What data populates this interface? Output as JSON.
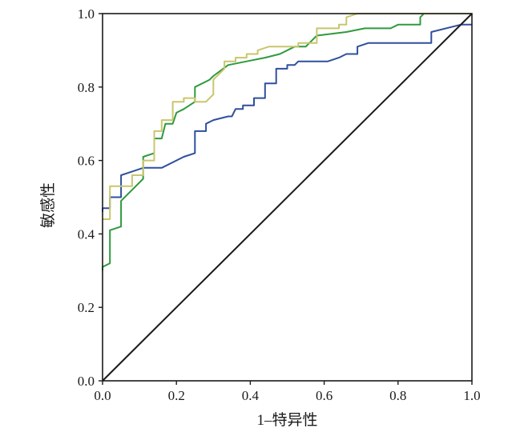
{
  "chart_data": {
    "type": "line",
    "title": "",
    "xlabel": "1–特异性",
    "ylabel": "敏感性",
    "xlim": [
      0.0,
      1.0
    ],
    "ylim": [
      0.0,
      1.0
    ],
    "xticks": [
      "0.0",
      "0.2",
      "0.4",
      "0.6",
      "0.8",
      "1.0"
    ],
    "yticks": [
      "0.0",
      "0.2",
      "0.4",
      "0.6",
      "0.8",
      "1.0"
    ],
    "grid": false,
    "legend": "none",
    "series": [
      {
        "name": "blue-roc-curve",
        "color": "#2f4f9e",
        "points": [
          [
            0,
            0.46
          ],
          [
            0,
            0.47
          ],
          [
            0.02,
            0.47
          ],
          [
            0.02,
            0.5
          ],
          [
            0.05,
            0.5
          ],
          [
            0.05,
            0.56
          ],
          [
            0.08,
            0.57
          ],
          [
            0.11,
            0.58
          ],
          [
            0.16,
            0.58
          ],
          [
            0.22,
            0.61
          ],
          [
            0.25,
            0.62
          ],
          [
            0.25,
            0.68
          ],
          [
            0.28,
            0.68
          ],
          [
            0.28,
            0.7
          ],
          [
            0.3,
            0.71
          ],
          [
            0.34,
            0.72
          ],
          [
            0.35,
            0.72
          ],
          [
            0.36,
            0.74
          ],
          [
            0.38,
            0.74
          ],
          [
            0.38,
            0.75
          ],
          [
            0.41,
            0.75
          ],
          [
            0.41,
            0.77
          ],
          [
            0.44,
            0.77
          ],
          [
            0.44,
            0.81
          ],
          [
            0.47,
            0.81
          ],
          [
            0.47,
            0.85
          ],
          [
            0.5,
            0.85
          ],
          [
            0.5,
            0.86
          ],
          [
            0.52,
            0.86
          ],
          [
            0.53,
            0.87
          ],
          [
            0.58,
            0.87
          ],
          [
            0.61,
            0.87
          ],
          [
            0.64,
            0.88
          ],
          [
            0.66,
            0.89
          ],
          [
            0.69,
            0.89
          ],
          [
            0.69,
            0.91
          ],
          [
            0.72,
            0.92
          ],
          [
            0.89,
            0.92
          ],
          [
            0.89,
            0.95
          ],
          [
            0.97,
            0.97
          ],
          [
            1.0,
            0.97
          ]
        ]
      },
      {
        "name": "green-roc-curve",
        "color": "#2e9a3e",
        "points": [
          [
            0,
            0.3
          ],
          [
            0,
            0.31
          ],
          [
            0.02,
            0.32
          ],
          [
            0.02,
            0.41
          ],
          [
            0.05,
            0.42
          ],
          [
            0.05,
            0.49
          ],
          [
            0.09,
            0.53
          ],
          [
            0.11,
            0.55
          ],
          [
            0.11,
            0.61
          ],
          [
            0.14,
            0.62
          ],
          [
            0.14,
            0.66
          ],
          [
            0.16,
            0.66
          ],
          [
            0.17,
            0.7
          ],
          [
            0.19,
            0.7
          ],
          [
            0.2,
            0.73
          ],
          [
            0.22,
            0.74
          ],
          [
            0.25,
            0.76
          ],
          [
            0.25,
            0.8
          ],
          [
            0.29,
            0.82
          ],
          [
            0.3,
            0.83
          ],
          [
            0.34,
            0.86
          ],
          [
            0.39,
            0.87
          ],
          [
            0.44,
            0.88
          ],
          [
            0.48,
            0.89
          ],
          [
            0.52,
            0.91
          ],
          [
            0.55,
            0.91
          ],
          [
            0.56,
            0.92
          ],
          [
            0.58,
            0.94
          ],
          [
            0.66,
            0.95
          ],
          [
            0.71,
            0.96
          ],
          [
            0.78,
            0.96
          ],
          [
            0.8,
            0.97
          ],
          [
            0.86,
            0.97
          ],
          [
            0.86,
            0.99
          ],
          [
            0.87,
            1.0
          ],
          [
            1.0,
            1.0
          ]
        ]
      },
      {
        "name": "yellow-roc-curve",
        "color": "#c8c66c",
        "points": [
          [
            0,
            0.44
          ],
          [
            0.02,
            0.44
          ],
          [
            0.02,
            0.53
          ],
          [
            0.06,
            0.53
          ],
          [
            0.06,
            0.53
          ],
          [
            0.08,
            0.53
          ],
          [
            0.08,
            0.56
          ],
          [
            0.11,
            0.56
          ],
          [
            0.11,
            0.6
          ],
          [
            0.14,
            0.6
          ],
          [
            0.14,
            0.68
          ],
          [
            0.16,
            0.68
          ],
          [
            0.16,
            0.71
          ],
          [
            0.19,
            0.71
          ],
          [
            0.19,
            0.76
          ],
          [
            0.22,
            0.76
          ],
          [
            0.22,
            0.77
          ],
          [
            0.25,
            0.77
          ],
          [
            0.25,
            0.76
          ],
          [
            0.28,
            0.76
          ],
          [
            0.3,
            0.78
          ],
          [
            0.3,
            0.82
          ],
          [
            0.33,
            0.85
          ],
          [
            0.33,
            0.87
          ],
          [
            0.36,
            0.87
          ],
          [
            0.36,
            0.88
          ],
          [
            0.39,
            0.88
          ],
          [
            0.39,
            0.89
          ],
          [
            0.42,
            0.89
          ],
          [
            0.42,
            0.9
          ],
          [
            0.45,
            0.91
          ],
          [
            0.5,
            0.91
          ],
          [
            0.53,
            0.91
          ],
          [
            0.53,
            0.92
          ],
          [
            0.58,
            0.92
          ],
          [
            0.58,
            0.96
          ],
          [
            0.64,
            0.96
          ],
          [
            0.64,
            0.97
          ],
          [
            0.66,
            0.97
          ],
          [
            0.66,
            0.99
          ],
          [
            0.69,
            1.0
          ],
          [
            1.0,
            1.0
          ]
        ]
      },
      {
        "name": "diagonal-reference-line",
        "color": "#1a1a1a",
        "points": [
          [
            0,
            0
          ],
          [
            1,
            1
          ]
        ]
      }
    ]
  }
}
